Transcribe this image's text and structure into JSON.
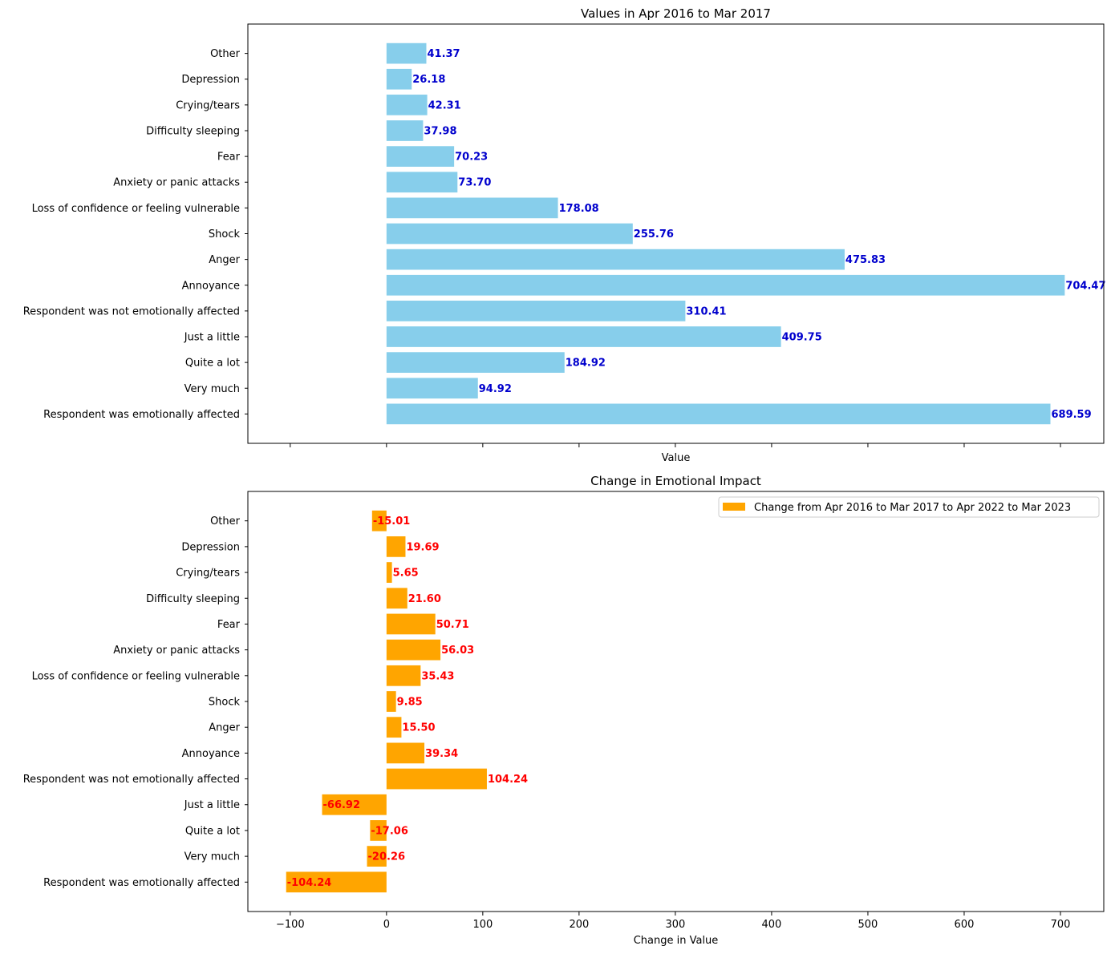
{
  "chart_data": [
    {
      "type": "bar",
      "orientation": "horizontal",
      "title": "Values in Apr 2016 to Mar 2017",
      "xlabel": "Value",
      "ylabel": "",
      "xlim": [
        -144,
        745
      ],
      "xticks": [
        -100,
        0,
        100,
        200,
        300,
        400,
        500,
        600,
        700
      ],
      "show_xtick_labels": false,
      "grid": false,
      "bar_color": "#87CEEB",
      "label_color": "#0000CD",
      "categories": [
        "Respondent was emotionally affected",
        "Very much",
        "Quite a lot",
        "Just a little",
        "Respondent was not emotionally affected",
        "Annoyance",
        "Anger",
        "Shock ",
        "Loss of confidence or feeling vulnerable",
        "Anxiety or panic attacks",
        "Fear",
        "Difficulty sleeping",
        "Crying/tears",
        "Depression",
        "Other"
      ],
      "values": [
        689.59,
        94.92,
        184.92,
        409.75,
        310.41,
        704.47,
        475.83,
        255.76,
        178.08,
        73.7,
        70.23,
        37.98,
        42.31,
        26.18,
        41.37
      ],
      "data_labels": [
        "689.59",
        "94.92",
        "184.92",
        "409.75",
        "310.41",
        "704.47",
        "475.83",
        "255.76",
        "178.08",
        "73.70",
        "70.23",
        "37.98",
        "42.31",
        "26.18",
        "41.37"
      ]
    },
    {
      "type": "bar",
      "orientation": "horizontal",
      "title": "Change in Emotional Impact",
      "xlabel": "Change in Value",
      "ylabel": "",
      "xlim": [
        -144,
        745
      ],
      "xticks": [
        -100,
        0,
        100,
        200,
        300,
        400,
        500,
        600,
        700
      ],
      "xtick_labels": [
        "−100",
        "0",
        "100",
        "200",
        "300",
        "400",
        "500",
        "600",
        "700"
      ],
      "show_xtick_labels": true,
      "grid": false,
      "bar_color": "#FFA500",
      "label_color": "#FF0000",
      "legend": {
        "position": "upper-right",
        "entries": [
          "Change from Apr 2016 to Mar 2017 to Apr 2022 to Mar 2023"
        ]
      },
      "categories": [
        "Respondent was emotionally affected",
        "Very much",
        "Quite a lot",
        "Just a little",
        "Respondent was not emotionally affected",
        "Annoyance",
        "Anger",
        "Shock ",
        "Loss of confidence or feeling vulnerable",
        "Anxiety or panic attacks",
        "Fear",
        "Difficulty sleeping",
        "Crying/tears",
        "Depression",
        "Other"
      ],
      "values": [
        -104.24,
        -20.26,
        -17.06,
        -66.92,
        104.24,
        39.34,
        15.5,
        9.85,
        35.43,
        56.03,
        50.71,
        21.6,
        5.65,
        19.69,
        -15.01
      ],
      "data_labels": [
        "-104.24",
        "-20.26",
        "-17.06",
        "-66.92",
        "104.24",
        "39.34",
        "15.50",
        "9.85",
        "35.43",
        "56.03",
        "50.71",
        "21.60",
        "5.65",
        "19.69",
        "-15.01"
      ]
    }
  ]
}
